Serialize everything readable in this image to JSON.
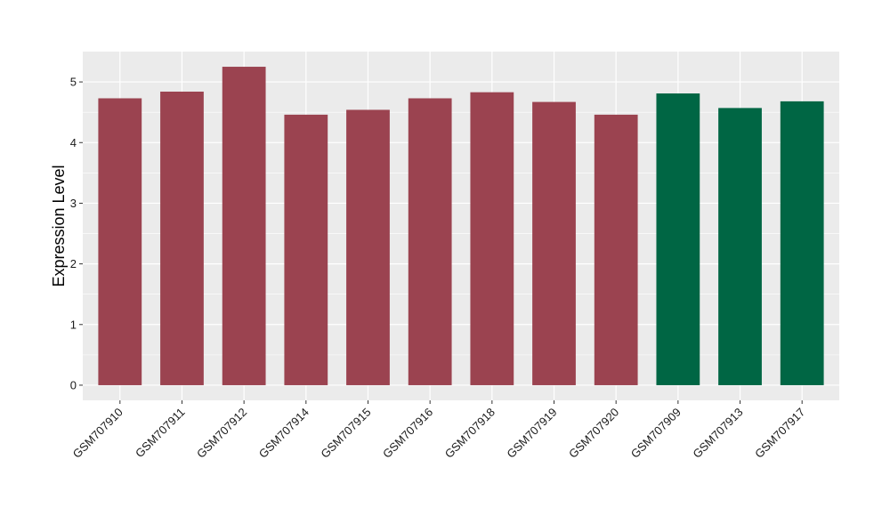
{
  "chart_data": {
    "type": "bar",
    "title": "",
    "xlabel": "",
    "ylabel": "Expression Level",
    "ylim": [
      -0.25,
      5.5
    ],
    "yticks": [
      0,
      1,
      2,
      3,
      4,
      5
    ],
    "grid": true,
    "categories": [
      "GSM707910",
      "GSM707911",
      "GSM707912",
      "GSM707914",
      "GSM707915",
      "GSM707916",
      "GSM707918",
      "GSM707919",
      "GSM707920",
      "GSM707909",
      "GSM707913",
      "GSM707917"
    ],
    "values": [
      4.73,
      4.84,
      5.25,
      4.46,
      4.54,
      4.73,
      4.83,
      4.67,
      4.46,
      4.81,
      4.57,
      4.68
    ],
    "bar_colors": [
      "#9b4350",
      "#9b4350",
      "#9b4350",
      "#9b4350",
      "#9b4350",
      "#9b4350",
      "#9b4350",
      "#9b4350",
      "#9b4350",
      "#006644",
      "#006644",
      "#006644"
    ],
    "panel_background": "#ebebeb",
    "grid_color": "#ffffff"
  }
}
